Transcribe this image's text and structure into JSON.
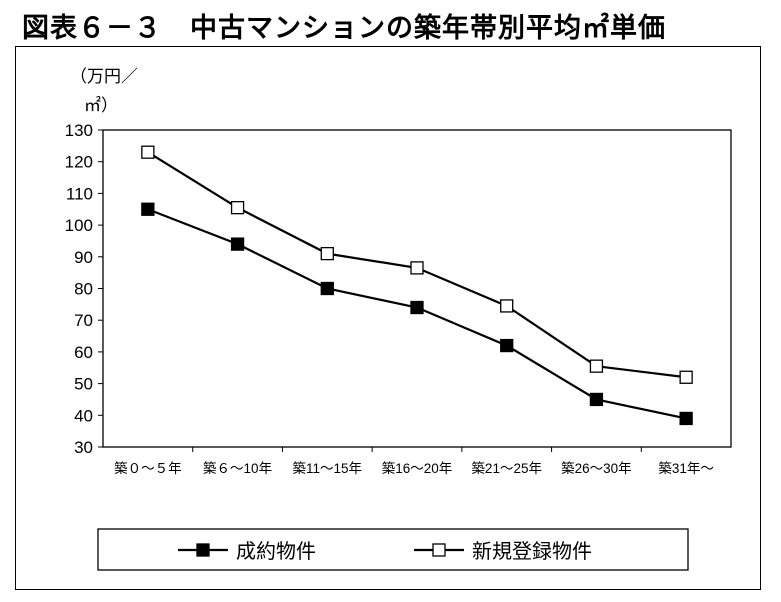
{
  "title": "図表６－３　中古マンションの築年帯別平均㎡単価",
  "chart_data": {
    "type": "line",
    "title": "図表６－３　中古マンションの築年帯別平均㎡単価",
    "ylabel_line1": "（万円／",
    "ylabel_line2": "㎡）",
    "xlabel": "",
    "ylim": [
      30,
      130
    ],
    "yticks": [
      30,
      40,
      50,
      60,
      70,
      80,
      90,
      100,
      110,
      120,
      130
    ],
    "grid": false,
    "categories": [
      "築０～５年",
      "築６～10年",
      "築11～15年",
      "築16～20年",
      "築21～25年",
      "築26～30年",
      "築31年～"
    ],
    "series": [
      {
        "name": "成約物件",
        "marker": "filled-square",
        "color": "#000000",
        "values": [
          105,
          94,
          80,
          74,
          62,
          45,
          39
        ]
      },
      {
        "name": "新規登録物件",
        "marker": "open-square",
        "color": "#000000",
        "values": [
          123,
          105.5,
          91,
          86.5,
          74.5,
          55.5,
          52
        ]
      }
    ],
    "legend_position": "bottom"
  }
}
